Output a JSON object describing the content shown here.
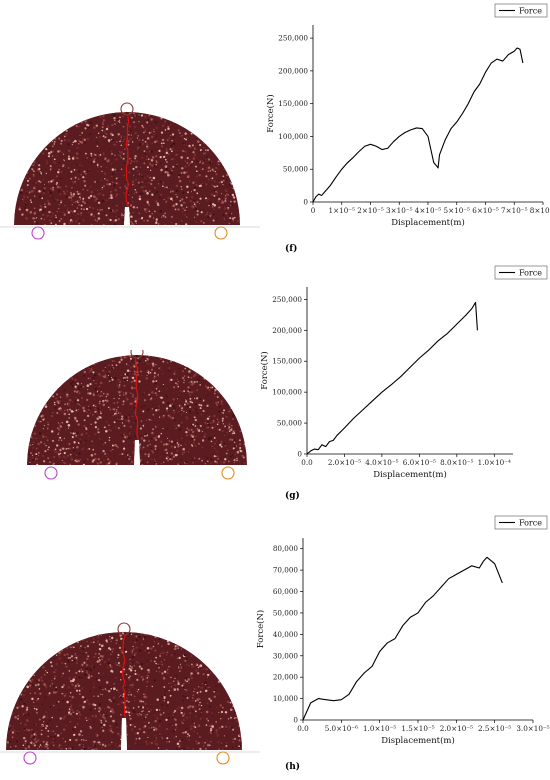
{
  "panels": [
    {
      "label": "(f)",
      "chart_data": {
        "type": "line",
        "title": "",
        "xlabel": "Displacement(m)",
        "ylabel": "Force(N)",
        "legend": "top-right",
        "grid": false,
        "xlim": [
          0,
          8e-05
        ],
        "ylim": [
          0,
          270000
        ],
        "xticks": [
          0,
          1e-05,
          2e-05,
          3e-05,
          4e-05,
          5e-05,
          6e-05,
          7e-05,
          8e-05
        ],
        "xtick_labels": [
          "0",
          "1×10⁻⁵",
          "2×10⁻⁵",
          "3×10⁻⁵",
          "4×10⁻⁵",
          "5×10⁻⁵",
          "6×10⁻⁵",
          "7×10⁻⁵",
          "8×10⁻⁵"
        ],
        "yticks": [
          0,
          50000,
          100000,
          150000,
          200000,
          250000
        ],
        "ytick_labels": [
          "0",
          "50,000",
          "100,000",
          "150,000",
          "200,000",
          "250,000"
        ],
        "series": [
          {
            "name": "Force",
            "x": [
              0,
              1e-06,
              2e-06,
              3e-06,
              4e-06,
              6e-06,
              8e-06,
              1e-05,
              1.2e-05,
              1.4e-05,
              1.6e-05,
              1.8e-05,
              2e-05,
              2.2e-05,
              2.4e-05,
              2.6e-05,
              2.8e-05,
              3e-05,
              3.2e-05,
              3.4e-05,
              3.6e-05,
              3.8e-05,
              4e-05,
              4.1e-05,
              4.2e-05,
              4.3e-05,
              4.35e-05,
              4.4e-05,
              4.6e-05,
              4.8e-05,
              5e-05,
              5.2e-05,
              5.4e-05,
              5.6e-05,
              5.8e-05,
              6e-05,
              6.2e-05,
              6.4e-05,
              6.6e-05,
              6.8e-05,
              7e-05,
              7.1e-05,
              7.2e-05,
              7.3e-05
            ],
            "y": [
              0,
              8000,
              12000,
              10000,
              15000,
              25000,
              38000,
              50000,
              60000,
              68000,
              77000,
              85000,
              88000,
              85000,
              80000,
              82000,
              92000,
              100000,
              106000,
              110000,
              113000,
              112000,
              100000,
              80000,
              60000,
              55000,
              52000,
              72000,
              95000,
              112000,
              122000,
              135000,
              150000,
              168000,
              180000,
              198000,
              212000,
              218000,
              215000,
              225000,
              230000,
              235000,
              233000,
              212000
            ]
          }
        ]
      }
    },
    {
      "label": "(g)",
      "chart_data": {
        "type": "line",
        "title": "",
        "xlabel": "Displacement(m)",
        "ylabel": "Force(N)",
        "legend": "top-right",
        "grid": false,
        "xlim": [
          0,
          0.00011
        ],
        "ylim": [
          0,
          270000
        ],
        "xticks": [
          0,
          2e-05,
          4e-05,
          6e-05,
          8e-05,
          0.0001
        ],
        "xtick_labels": [
          "0.0",
          "2.0×10⁻⁵",
          "4.0×10⁻⁵",
          "6.0×10⁻⁵",
          "8.0×10⁻⁵",
          "1.0×10⁻⁴"
        ],
        "yticks": [
          0,
          50000,
          100000,
          150000,
          200000,
          250000
        ],
        "ytick_labels": [
          "0",
          "50,000",
          "100,000",
          "150,000",
          "200,000",
          "250,000"
        ],
        "series": [
          {
            "name": "Force",
            "x": [
              0,
              2e-06,
              4e-06,
              6e-06,
              8e-06,
              1e-05,
              1.2e-05,
              1.4e-05,
              1.6e-05,
              2e-05,
              2.5e-05,
              3e-05,
              3.5e-05,
              4e-05,
              4.5e-05,
              5e-05,
              5.5e-05,
              6e-05,
              6.5e-05,
              7e-05,
              7.5e-05,
              8e-05,
              8.5e-05,
              8.8e-05,
              9e-05,
              9.1e-05
            ],
            "y": [
              0,
              5000,
              8000,
              7000,
              15000,
              12000,
              20000,
              22000,
              30000,
              42000,
              58000,
              72000,
              86000,
              100000,
              112000,
              125000,
              140000,
              155000,
              168000,
              183000,
              195000,
              210000,
              225000,
              235000,
              245000,
              200000
            ]
          }
        ]
      }
    },
    {
      "label": "(h)",
      "chart_data": {
        "type": "line",
        "title": "",
        "xlabel": "Displacement(m)",
        "ylabel": "Force(N)",
        "legend": "top-right",
        "grid": false,
        "xlim": [
          0,
          3e-05
        ],
        "ylim": [
          0,
          85000
        ],
        "xticks": [
          0,
          5e-06,
          1e-05,
          1.5e-05,
          2e-05,
          2.5e-05,
          3e-05
        ],
        "xtick_labels": [
          "0.0",
          "5.0×10⁻⁶",
          "1.0×10⁻⁵",
          "1.5×10⁻⁵",
          "2.0×10⁻⁵",
          "2.5×10⁻⁵",
          "3.0×10⁻⁵"
        ],
        "yticks": [
          0,
          10000,
          20000,
          30000,
          40000,
          50000,
          60000,
          70000,
          80000
        ],
        "ytick_labels": [
          "0",
          "10,000",
          "20,000",
          "30,000",
          "40,000",
          "50,000",
          "60,000",
          "70,000",
          "80,000"
        ],
        "series": [
          {
            "name": "Force",
            "x": [
              0,
              1e-06,
              2e-06,
              3e-06,
              4e-06,
              5e-06,
              6e-06,
              7e-06,
              8e-06,
              9e-06,
              1e-05,
              1.1e-05,
              1.2e-05,
              1.3e-05,
              1.4e-05,
              1.5e-05,
              1.6e-05,
              1.7e-05,
              1.8e-05,
              1.9e-05,
              2e-05,
              2.1e-05,
              2.2e-05,
              2.3e-05,
              2.35e-05,
              2.4e-05,
              2.5e-05,
              2.6e-05
            ],
            "y": [
              0,
              8000,
              10000,
              9500,
              9000,
              9500,
              12000,
              18000,
              22000,
              25000,
              32000,
              36000,
              38000,
              44000,
              48000,
              50000,
              55000,
              58000,
              62000,
              66000,
              68000,
              70000,
              72000,
              71000,
              74000,
              76000,
              73000,
              64000
            ]
          }
        ]
      }
    }
  ],
  "colors": {
    "curve": "#000000",
    "crack": "#e01010",
    "specimen_dark": "#5a1c20",
    "specimen_light": "#c98f86",
    "top_marker": "#8b3a3a",
    "left_marker": "#c040d0",
    "right_marker": "#e08a20"
  }
}
